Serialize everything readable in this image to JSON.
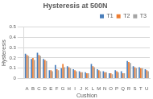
{
  "chart_data": {
    "type": "bar",
    "title": "Hysteresis at 500N",
    "x_label": "Cushion",
    "y_label": "Hysteresis",
    "categories": [
      "A",
      "B",
      "C",
      "D",
      "E",
      "F",
      "G",
      "H",
      "I",
      "J",
      "K",
      "L",
      "M",
      "N",
      "O",
      "P",
      "Q",
      "R",
      "S",
      "T",
      "U"
    ],
    "series": [
      {
        "name": "T1",
        "color": "#4a7ebb",
        "values": [
          0.24,
          0.19,
          0.25,
          0.19,
          0.08,
          0.13,
          0.1,
          0.12,
          0.09,
          0.07,
          0.06,
          0.14,
          0.09,
          0.07,
          0.05,
          0.08,
          0.07,
          0.17,
          0.12,
          0.11,
          0.09
        ]
      },
      {
        "name": "T2",
        "color": "#ed7d31",
        "values": [
          0.23,
          0.2,
          0.23,
          0.18,
          0.08,
          0.09,
          0.14,
          0.11,
          0.08,
          0.06,
          0.05,
          0.12,
          0.08,
          0.06,
          0.05,
          0.07,
          0.05,
          0.16,
          0.11,
          0.1,
          0.08
        ]
      },
      {
        "name": "T3",
        "color": "#a5a5a5",
        "values": [
          0.22,
          0.18,
          0.22,
          0.17,
          0.07,
          0.08,
          0.11,
          0.1,
          0.07,
          0.06,
          0.05,
          0.11,
          0.07,
          0.06,
          0.04,
          0.06,
          0.05,
          0.15,
          0.1,
          0.1,
          0.07
        ]
      }
    ],
    "ylim": [
      0,
      0.5
    ],
    "yticks": [
      0,
      0.1,
      0.2,
      0.3,
      0.4,
      0.5
    ],
    "grid": true,
    "legend": "upper right"
  }
}
